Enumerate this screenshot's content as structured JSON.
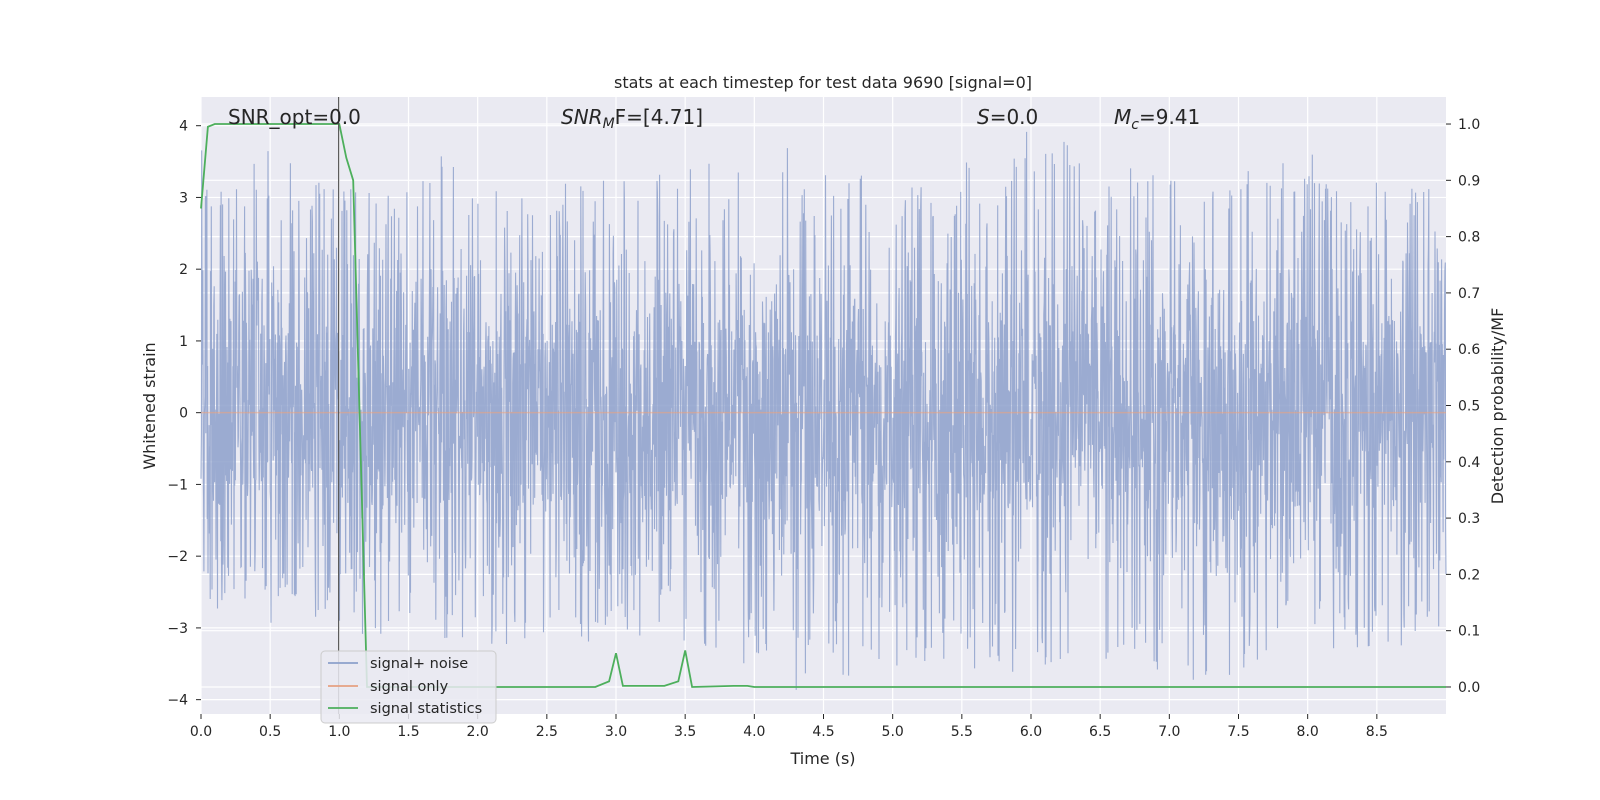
{
  "chart_data": {
    "type": "line",
    "title": "stats at each timestep for test data 9690 [signal=0]",
    "xlabel": "Time (s)",
    "ylabel": "Whitened strain",
    "y2label": "Detection probability/MF",
    "xlim": [
      0,
      9
    ],
    "ylim": [
      -4.2,
      4.4
    ],
    "y2lim": [
      -0.048,
      1.048
    ],
    "x_ticks": [
      "0.0",
      "0.5",
      "1.0",
      "1.5",
      "2.0",
      "2.5",
      "3.0",
      "3.5",
      "4.0",
      "4.5",
      "5.0",
      "5.5",
      "6.0",
      "6.5",
      "7.0",
      "7.5",
      "8.0",
      "8.5"
    ],
    "y_ticks": [
      "4",
      "3",
      "2",
      "1",
      "0",
      "−1",
      "−2",
      "−3",
      "−4"
    ],
    "y2_ticks": [
      "1.0",
      "0.9",
      "0.8",
      "0.7",
      "0.6",
      "0.5",
      "0.4",
      "0.3",
      "0.2",
      "0.1",
      "0.0"
    ],
    "grid": true,
    "annotations": [
      {
        "id": "snr-opt",
        "label": "SNR_opt=0.0"
      },
      {
        "id": "snr-mf-prefix",
        "label": "SNR"
      },
      {
        "id": "snr-mf-sub",
        "label": "M"
      },
      {
        "id": "snr-mf-suffix",
        "label": "F=[4.71]"
      },
      {
        "id": "s-prefix",
        "label": "S"
      },
      {
        "id": "s-suffix",
        "label": "=0.0"
      },
      {
        "id": "mc-prefix",
        "label": "M"
      },
      {
        "id": "mc-sub",
        "label": "c"
      },
      {
        "id": "mc-suffix",
        "label": "=9.41"
      }
    ],
    "merger_marker_x": 0.995,
    "legend": {
      "placement": "lower-left",
      "entries": [
        {
          "name": "signal+ noise",
          "color": "#8da0cb"
        },
        {
          "name": "signal only",
          "color": "#e5a082"
        },
        {
          "name": "signal statistics",
          "color": "#4daf5c"
        }
      ]
    },
    "series": [
      {
        "name": "signal+ noise",
        "axis": "left",
        "color": "#8da0cb",
        "style": "dense noise trace, approx 9000 samples",
        "envelope_top": [
          [
            0.2,
            3.8
          ],
          [
            0.45,
            3.7
          ],
          [
            0.9,
            3.3
          ],
          [
            1.35,
            3.2
          ],
          [
            1.9,
            3.8
          ],
          [
            2.6,
            3.2
          ],
          [
            3.45,
            3.4
          ],
          [
            4.25,
            3.7
          ],
          [
            4.4,
            3.5
          ],
          [
            4.7,
            3.5
          ],
          [
            5.35,
            3.4
          ],
          [
            5.55,
            3.5
          ],
          [
            6.05,
            4.0
          ],
          [
            6.55,
            3.5
          ],
          [
            6.95,
            3.3
          ],
          [
            7.35,
            3.3
          ],
          [
            7.6,
            3.4
          ],
          [
            7.95,
            3.6
          ],
          [
            8.15,
            3.6
          ],
          [
            8.75,
            3.2
          ]
        ],
        "envelope_bottom": [
          [
            0.2,
            -2.9
          ],
          [
            0.85,
            -3.0
          ],
          [
            1.15,
            -3.1
          ],
          [
            2.0,
            -3.3
          ],
          [
            2.3,
            -3.2
          ],
          [
            3.2,
            -3.3
          ],
          [
            3.85,
            -3.4
          ],
          [
            4.25,
            -3.9
          ],
          [
            5.1,
            -3.5
          ],
          [
            5.9,
            -3.8
          ],
          [
            6.3,
            -3.4
          ],
          [
            6.75,
            -3.6
          ],
          [
            7.4,
            -3.8
          ],
          [
            7.75,
            -3.3
          ],
          [
            8.45,
            -3.3
          ],
          [
            8.95,
            -3.2
          ]
        ]
      },
      {
        "name": "signal only",
        "axis": "left",
        "color": "#e5a082",
        "x": [
          0,
          9
        ],
        "y": [
          0,
          0
        ]
      },
      {
        "name": "signal statistics",
        "axis": "right",
        "color": "#4daf5c",
        "x": [
          0.0,
          0.05,
          0.1,
          0.2,
          0.5,
          1.0,
          1.05,
          1.1,
          1.2,
          2.85,
          2.95,
          3.0,
          3.05,
          3.35,
          3.45,
          3.5,
          3.55,
          3.85,
          3.95,
          4.0,
          9.0
        ],
        "y": [
          0.85,
          0.995,
          1.0,
          1.0,
          1.0,
          1.0,
          0.94,
          0.9,
          0.0,
          0.0,
          0.01,
          0.06,
          0.002,
          0.002,
          0.01,
          0.065,
          0.0,
          0.002,
          0.002,
          0.0,
          0.0
        ]
      }
    ]
  }
}
